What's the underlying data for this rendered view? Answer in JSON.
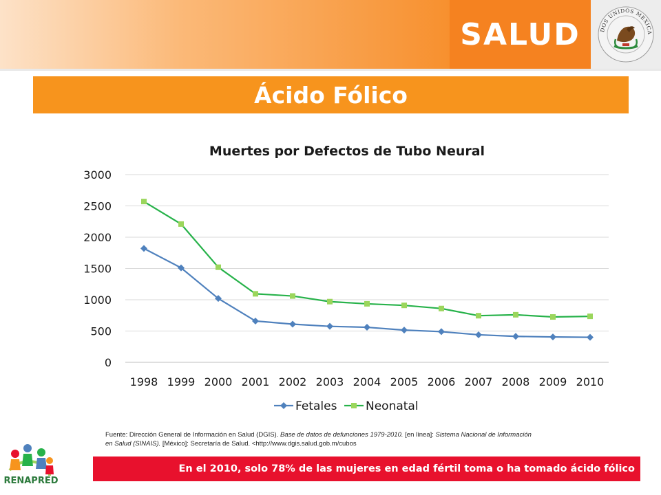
{
  "header": {
    "brand": "SALUD",
    "seal_text": "ESTADOS UNIDOS MEXICANOS"
  },
  "page_title": "Ácido Fólico",
  "chart_data": {
    "type": "line",
    "title": "Muertes por Defectos de Tubo Neural",
    "x": [
      "1998",
      "1999",
      "2000",
      "2001",
      "2002",
      "2003",
      "2004",
      "2005",
      "2006",
      "2007",
      "2008",
      "2009",
      "2010"
    ],
    "ylim": [
      0,
      3000
    ],
    "yticks": [
      0,
      500,
      1000,
      1500,
      2000,
      2500,
      3000
    ],
    "grid": true,
    "legend": "bottom",
    "series": [
      {
        "name": "Fetales",
        "color": "#4f81bd",
        "marker": "diamond",
        "values": [
          1820,
          1510,
          1020,
          660,
          610,
          575,
          560,
          515,
          490,
          440,
          415,
          405,
          400
        ]
      },
      {
        "name": "Neonatal",
        "color": "#27b24a",
        "marker": "square",
        "marker_color": "#9bd65c",
        "values": [
          2570,
          2210,
          1520,
          1095,
          1060,
          970,
          935,
          910,
          860,
          745,
          760,
          725,
          735
        ]
      }
    ]
  },
  "source": {
    "prefix": "Fuente: Dirección General de Información en Salud (DGIS). ",
    "italic1": "Base de datos de defunciones 1979-2010.",
    "mid": " [en línea]: ",
    "italic2": "Sistema Nacional de Información en Salud (SINAIS).",
    "suffix": " [México]: Secretaría de Salud. <http://www.dgis.salud.gob.m/cubos"
  },
  "bottom_note": "En el 2010, solo 78% de las mujeres en edad fértil toma o ha tomado ácido fólico",
  "logo": {
    "label": "RENAPRED"
  },
  "colors": {
    "orange": "#f7941d",
    "salud_orange": "#f58220",
    "red_bar": "#e8112d",
    "grid": "#d9d9d9"
  }
}
